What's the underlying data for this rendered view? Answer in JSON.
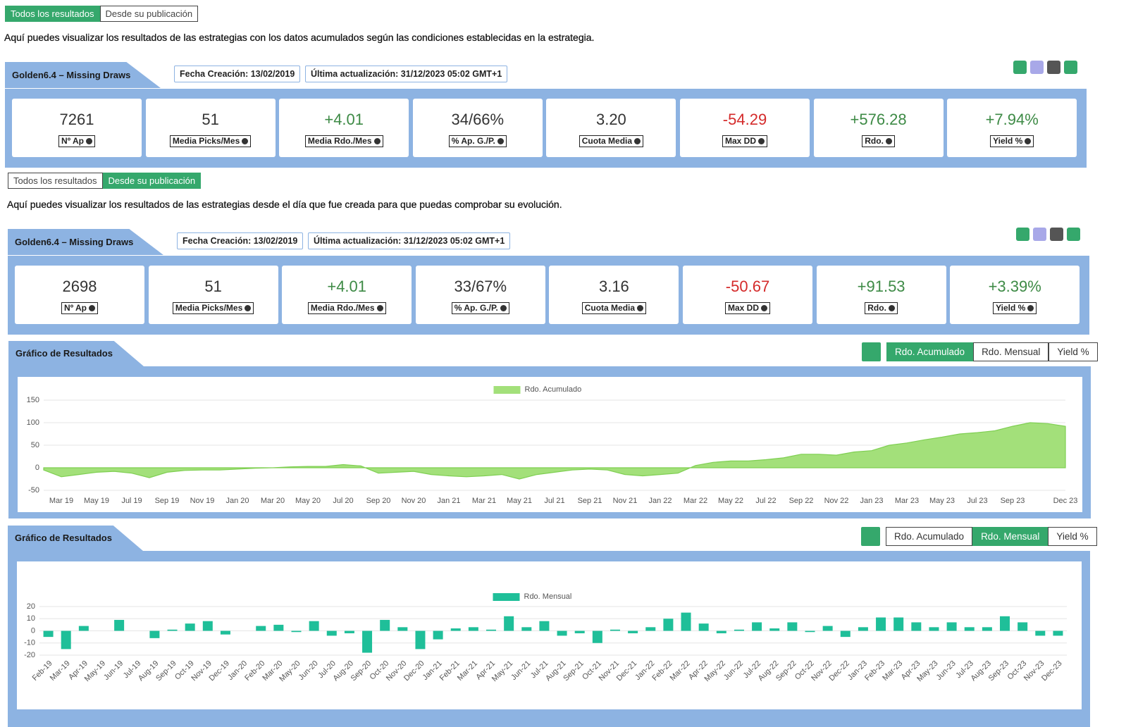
{
  "sections": [
    {
      "tabs": [
        "Todos los resultados",
        "Desde su publicación"
      ],
      "active_tab": 0,
      "intro": "Aquí puedes visualizar los resultados de las estrategias con los datos acumulados según las condiciones establecidas en la estrategia.",
      "title": "Golden6.4 – Missing Draws",
      "created": "Fecha Creación: 13/02/2019",
      "updated": "Última actualización: 31/12/2023 05:02 GMT+1",
      "stats": [
        {
          "value": "7261",
          "label": "Nº Ap"
        },
        {
          "value": "51",
          "label": "Media Picks/Mes"
        },
        {
          "value": "+4.01",
          "label": "Media Rdo./Mes"
        },
        {
          "value": "34/66%",
          "label": "% Ap. G./P."
        },
        {
          "value": "3.20",
          "label": "Cuota Media"
        },
        {
          "value": "-54.29",
          "label": "Max DD"
        },
        {
          "value": "+576.28",
          "label": "Rdo."
        },
        {
          "value": "+7.94%",
          "label": "Yield %"
        }
      ]
    },
    {
      "tabs": [
        "Todos los resultados",
        "Desde su publicación"
      ],
      "active_tab": 1,
      "intro": "Aquí puedes visualizar los resultados de las estrategias desde el día que fue creada para que puedas comprobar su evolución.",
      "title": "Golden6.4 – Missing Draws",
      "created": "Fecha Creación: 13/02/2019",
      "updated": "Última actualización: 31/12/2023 05:02 GMT+1",
      "stats": [
        {
          "value": "2698",
          "label": "Nº Ap"
        },
        {
          "value": "51",
          "label": "Media Picks/Mes"
        },
        {
          "value": "+4.01",
          "label": "Media Rdo./Mes"
        },
        {
          "value": "33/67%",
          "label": "% Ap. G./P."
        },
        {
          "value": "3.16",
          "label": "Cuota Media"
        },
        {
          "value": "-50.67",
          "label": "Max DD"
        },
        {
          "value": "+91.53",
          "label": "Rdo."
        },
        {
          "value": "+3.39%",
          "label": "Yield %"
        }
      ]
    }
  ],
  "chart_data": [
    {
      "type": "area",
      "title": "Gráfico de Resultados",
      "buttons": [
        "Rdo. Acumulado",
        "Rdo. Mensual",
        "Yield %"
      ],
      "active_button": 0,
      "grid": true,
      "categories": [
        null,
        "Mar 19",
        null,
        "May 19",
        null,
        "Jul 19",
        null,
        "Sep 19",
        null,
        "Nov 19",
        null,
        "Jan 20",
        null,
        "Mar 20",
        null,
        "May 20",
        null,
        "Jul 20",
        null,
        "Sep 20",
        null,
        "Nov 20",
        null,
        "Jan 21",
        null,
        "Mar 21",
        null,
        "May 21",
        null,
        "Jul 21",
        null,
        "Sep 21",
        null,
        "Nov 21",
        null,
        "Jan 22",
        null,
        "Mar 22",
        null,
        "May 22",
        null,
        "Jul 22",
        null,
        "Sep 22",
        null,
        "Nov 22",
        null,
        "Jan 23",
        null,
        "Mar 23",
        null,
        "May 23",
        null,
        "Jul 23",
        null,
        "Sep 23",
        null,
        null,
        "Dec 23"
      ],
      "series": [
        {
          "name": "Rdo. Acumulado",
          "color": "#a3e07a",
          "values": [
            -5,
            -20,
            -15,
            -10,
            -8,
            -12,
            -22,
            -10,
            -6,
            -5,
            -5,
            -3,
            -1,
            0,
            2,
            3,
            3,
            7,
            4,
            -12,
            -10,
            -8,
            -15,
            -18,
            -20,
            -18,
            -15,
            -25,
            -15,
            -10,
            -5,
            -3,
            -5,
            -15,
            -18,
            -15,
            -12,
            5,
            12,
            15,
            15,
            18,
            22,
            30,
            30,
            28,
            35,
            38,
            50,
            55,
            62,
            68,
            75,
            78,
            82,
            92,
            100,
            98,
            92
          ]
        }
      ],
      "ylim": [
        -50,
        150
      ],
      "yticks": [
        -50,
        0,
        50,
        100,
        150
      ]
    },
    {
      "type": "bar",
      "title": "Gráfico de Resultados",
      "buttons": [
        "Rdo. Acumulado",
        "Rdo. Mensual",
        "Yield %"
      ],
      "active_button": 1,
      "grid": true,
      "categories": [
        "Feb-19",
        "Mar-19",
        "Apr-19",
        "May-19",
        "Jun-19",
        "Jul-19",
        "Aug-19",
        "Sep-19",
        "Oct-19",
        "Nov-19",
        "Dec-19",
        "Jan-20",
        "Feb-20",
        "Mar-20",
        "May-20",
        "Jun-20",
        "Jul-20",
        "Aug-20",
        "Sep-20",
        "Oct-20",
        "Nov-20",
        "Dec-20",
        "Jan-21",
        "Feb-21",
        "Mar-21",
        "Apr-21",
        "May-21",
        "Jun-21",
        "Jul-21",
        "Aug-21",
        "Sep-21",
        "Oct-21",
        "Nov-21",
        "Dec-21",
        "Jan-22",
        "Feb-22",
        "Mar-22",
        "Apr-22",
        "May-22",
        "Jun-22",
        "Jul-22",
        "Aug-22",
        "Sep-22",
        "Oct-22",
        "Nov-22",
        "Dec-22",
        "Jan-23",
        "Feb-23",
        "Mar-23",
        "Apr-23",
        "May-23",
        "Jun-23",
        "Jul-23",
        "Aug-23",
        "Sep-23",
        "Oct-23",
        "Nov-23",
        "Dec-23"
      ],
      "series": [
        {
          "name": "Rdo. Mensual",
          "color": "#1fbf99",
          "values": [
            -5,
            -15,
            4,
            0,
            9,
            0,
            -6,
            1,
            6,
            8,
            -3,
            0,
            4,
            5,
            -1,
            8,
            -4,
            -2,
            -18,
            9,
            3,
            -15,
            -7,
            2,
            3,
            1,
            12,
            3,
            8,
            -4,
            -2,
            -10,
            1,
            -2,
            3,
            10,
            15,
            6,
            -2,
            1,
            7,
            2,
            7,
            -1,
            4,
            -5,
            3,
            11,
            11,
            7,
            3,
            7,
            3,
            3,
            12,
            7,
            -4,
            -4
          ]
        }
      ],
      "ylim": [
        -20,
        20
      ],
      "yticks": [
        -20,
        -10,
        0,
        10,
        20
      ]
    }
  ]
}
